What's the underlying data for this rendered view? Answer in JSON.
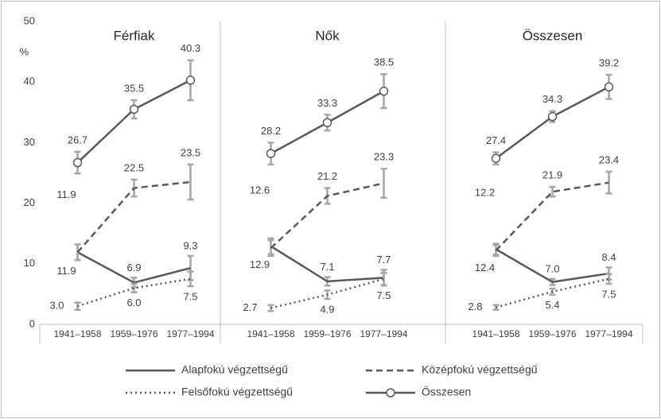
{
  "chart_data": [
    {
      "type": "line",
      "title": "Férfiak",
      "ylabel": "%",
      "ylim": [
        0,
        50
      ],
      "yticks": [
        0,
        10,
        20,
        30,
        40,
        50
      ],
      "categories": [
        "1941–1958",
        "1959–1976",
        "1977–1994"
      ],
      "series": [
        {
          "name": "Alapfokú végzettségű",
          "color": "#595959",
          "dash": "solid",
          "values": [
            11.9,
            6.9,
            9.3
          ],
          "value_labels": [
            "11.9",
            "6.9",
            "9.3"
          ],
          "errors": [
            1.3,
            0.8,
            2.0
          ]
        },
        {
          "name": "Középfokú végzettségű",
          "color": "#595959",
          "dash": "dashed",
          "values": [
            11.9,
            22.5,
            23.5
          ],
          "value_labels": [
            "11.9",
            "22.5",
            "23.5"
          ],
          "errors": [
            1.3,
            1.4,
            2.9
          ]
        },
        {
          "name": "Felsőfokú végzettségű",
          "color": "#595959",
          "dash": "dotted",
          "values": [
            3.0,
            6.0,
            7.5
          ],
          "value_labels": [
            "3.0",
            "6.0",
            "7.5"
          ],
          "errors": [
            0.6,
            0.7,
            1.2
          ]
        },
        {
          "name": "Összesen",
          "color": "#595959",
          "dash": "solid",
          "marker": "circle",
          "values": [
            26.7,
            35.5,
            40.3
          ],
          "value_labels": [
            "26.7",
            "35.5",
            "40.3"
          ],
          "errors": [
            1.8,
            1.5,
            3.3
          ]
        }
      ]
    },
    {
      "type": "line",
      "title": "Nők",
      "categories": [
        "1941–1958",
        "1959–1976",
        "1977–1994"
      ],
      "series": [
        {
          "color": "#595959",
          "dash": "solid",
          "values": [
            12.9,
            7.1,
            7.7
          ],
          "value_labels": [
            "12.9",
            "7.1",
            "7.7"
          ],
          "errors": [
            1.3,
            0.7,
            1.3
          ]
        },
        {
          "color": "#595959",
          "dash": "dashed",
          "values": [
            12.6,
            21.2,
            23.3
          ],
          "value_labels": [
            "12.6",
            "21.2",
            "23.3"
          ],
          "errors": [
            1.3,
            1.3,
            2.4
          ]
        },
        {
          "color": "#595959",
          "dash": "dotted",
          "values": [
            2.7,
            4.9,
            7.5
          ],
          "value_labels": [
            "2.7",
            "4.9",
            "7.5"
          ],
          "errors": [
            0.5,
            0.7,
            1.0
          ]
        },
        {
          "color": "#595959",
          "dash": "solid",
          "marker": "circle",
          "values": [
            28.2,
            33.3,
            38.5
          ],
          "value_labels": [
            "28.2",
            "33.3",
            "38.5"
          ],
          "errors": [
            1.8,
            1.3,
            2.8
          ]
        }
      ]
    },
    {
      "type": "line",
      "title": "Összesen",
      "categories": [
        "1941–1958",
        "1959–1976",
        "1977–1994"
      ],
      "series": [
        {
          "color": "#595959",
          "dash": "solid",
          "values": [
            12.4,
            7.0,
            8.4
          ],
          "value_labels": [
            "12.4",
            "7.0",
            "8.4"
          ],
          "errors": [
            0.9,
            0.5,
            1.0
          ]
        },
        {
          "color": "#595959",
          "dash": "dashed",
          "values": [
            12.2,
            21.9,
            23.4
          ],
          "value_labels": [
            "12.2",
            "21.9",
            "23.4"
          ],
          "errors": [
            0.9,
            0.8,
            1.8
          ]
        },
        {
          "color": "#595959",
          "dash": "dotted",
          "values": [
            2.8,
            5.4,
            7.5
          ],
          "value_labels": [
            "2.8",
            "5.4",
            "7.5"
          ],
          "errors": [
            0.4,
            0.5,
            0.8
          ]
        },
        {
          "color": "#595959",
          "dash": "solid",
          "marker": "circle",
          "values": [
            27.4,
            34.3,
            39.2
          ],
          "value_labels": [
            "27.4",
            "34.3",
            "39.2"
          ],
          "errors": [
            1.0,
            0.9,
            2.0
          ]
        }
      ]
    }
  ]
}
